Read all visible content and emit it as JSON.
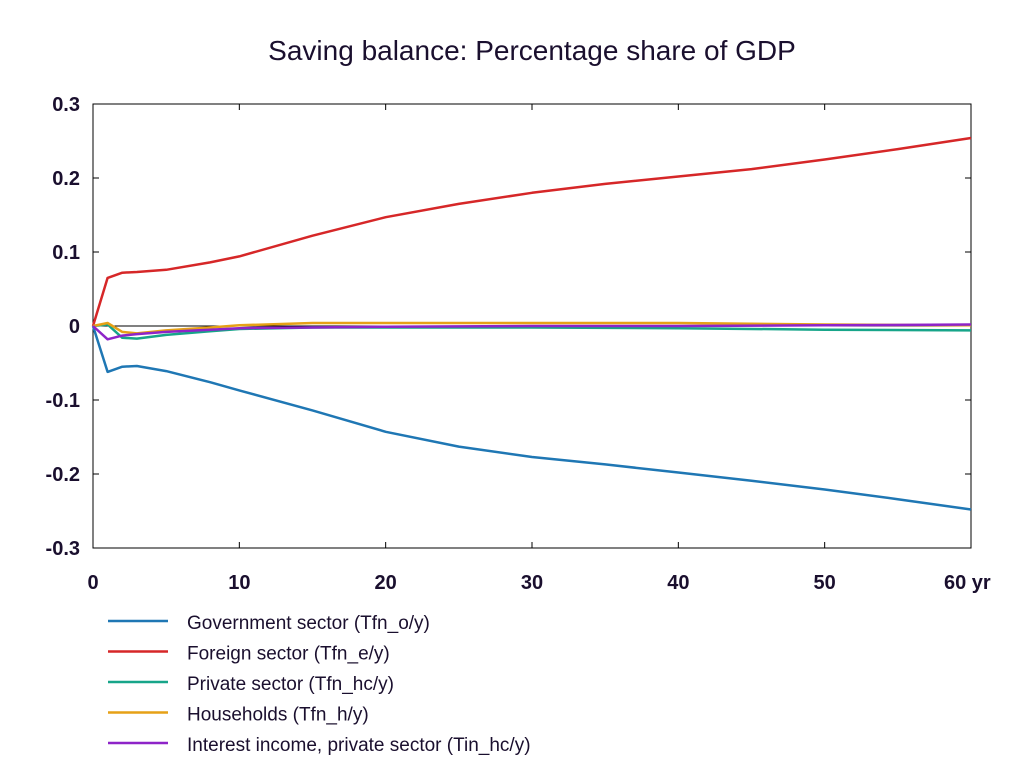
{
  "chart_data": {
    "type": "line",
    "title": "Saving balance: Percentage share of GDP",
    "x_unit": "yr",
    "xlim": [
      0,
      60
    ],
    "ylim": [
      -0.3,
      0.3
    ],
    "x_ticks": [
      0,
      10,
      20,
      30,
      40,
      50,
      60
    ],
    "x_tick_labels": [
      "0",
      "10",
      "20",
      "30",
      "40",
      "50",
      "60 yr"
    ],
    "y_ticks": [
      0.3,
      0.2,
      0.1,
      0,
      -0.1,
      -0.2,
      -0.3
    ],
    "y_tick_labels": [
      "0.3",
      "0.2",
      "0.1",
      "0",
      "-0.1",
      "-0.2",
      "-0.3"
    ],
    "grid": false,
    "legend_position": "bottom",
    "series": [
      {
        "name": "Government sector (Tfn_o/y)",
        "color": "#1f77b4",
        "points": [
          [
            0,
            0
          ],
          [
            1,
            -0.062
          ],
          [
            2,
            -0.055
          ],
          [
            3,
            -0.054
          ],
          [
            5,
            -0.061
          ],
          [
            8,
            -0.076
          ],
          [
            10,
            -0.087
          ],
          [
            15,
            -0.114
          ],
          [
            20,
            -0.143
          ],
          [
            25,
            -0.163
          ],
          [
            30,
            -0.177
          ],
          [
            35,
            -0.187
          ],
          [
            40,
            -0.198
          ],
          [
            45,
            -0.209
          ],
          [
            50,
            -0.221
          ],
          [
            55,
            -0.234
          ],
          [
            60,
            -0.248
          ]
        ]
      },
      {
        "name": "Foreign sector (Tfn_e/y)",
        "color": "#d62728",
        "points": [
          [
            0,
            0
          ],
          [
            1,
            0.065
          ],
          [
            2,
            0.072
          ],
          [
            3,
            0.073
          ],
          [
            5,
            0.076
          ],
          [
            8,
            0.086
          ],
          [
            10,
            0.094
          ],
          [
            15,
            0.122
          ],
          [
            20,
            0.147
          ],
          [
            25,
            0.165
          ],
          [
            30,
            0.18
          ],
          [
            35,
            0.192
          ],
          [
            40,
            0.202
          ],
          [
            45,
            0.212
          ],
          [
            50,
            0.225
          ],
          [
            55,
            0.239
          ],
          [
            60,
            0.254
          ]
        ]
      },
      {
        "name": "Private sector (Tfn_hc/y)",
        "color": "#17a589",
        "points": [
          [
            0,
            0
          ],
          [
            1,
            0.002
          ],
          [
            2,
            -0.016
          ],
          [
            3,
            -0.017
          ],
          [
            5,
            -0.012
          ],
          [
            8,
            -0.007
          ],
          [
            10,
            -0.004
          ],
          [
            15,
            -0.002
          ],
          [
            20,
            -0.002
          ],
          [
            30,
            -0.002
          ],
          [
            40,
            -0.003
          ],
          [
            50,
            -0.005
          ],
          [
            60,
            -0.006
          ]
        ]
      },
      {
        "name": "Households (Tfn_h/y)",
        "color": "#e6a117",
        "points": [
          [
            0,
            0
          ],
          [
            1,
            0.004
          ],
          [
            2,
            -0.008
          ],
          [
            3,
            -0.01
          ],
          [
            5,
            -0.006
          ],
          [
            8,
            -0.002
          ],
          [
            10,
            0.001
          ],
          [
            15,
            0.004
          ],
          [
            20,
            0.004
          ],
          [
            30,
            0.004
          ],
          [
            40,
            0.004
          ],
          [
            50,
            0.002
          ],
          [
            60,
            0.001
          ]
        ]
      },
      {
        "name": "Interest income, private sector (Tin_hc/y)",
        "color": "#8e24c8",
        "points": [
          [
            0,
            0
          ],
          [
            1,
            -0.018
          ],
          [
            2,
            -0.013
          ],
          [
            3,
            -0.011
          ],
          [
            5,
            -0.008
          ],
          [
            8,
            -0.005
          ],
          [
            10,
            -0.003
          ],
          [
            15,
            -0.002
          ],
          [
            20,
            -0.001
          ],
          [
            30,
            0.0
          ],
          [
            40,
            0.0
          ],
          [
            50,
            0.001
          ],
          [
            60,
            0.002
          ]
        ]
      }
    ]
  }
}
